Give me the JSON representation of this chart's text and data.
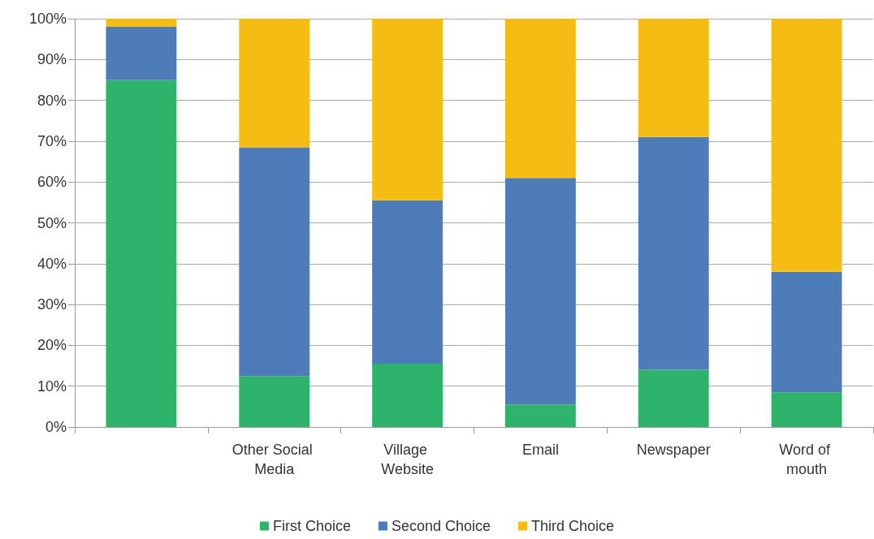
{
  "chart_data": {
    "type": "bar",
    "stacked": true,
    "categories": [
      null,
      "Other Social Media",
      "Village Website",
      "Email",
      "Newspaper",
      "Word of mouth"
    ],
    "series": [
      {
        "name": "First Choice",
        "color": "#2db46a",
        "values": [
          85,
          12.5,
          15.5,
          5.5,
          14,
          8.5
        ]
      },
      {
        "name": "Second Choice",
        "color": "#4e7cb9",
        "values": [
          13,
          56,
          40,
          55.5,
          57,
          29.5
        ]
      },
      {
        "name": "Third Choice",
        "color": "#f5bc14",
        "values": [
          2,
          31.5,
          44.5,
          39,
          29,
          62
        ]
      }
    ],
    "ylim": [
      0,
      100
    ],
    "yticks": [
      {
        "value": 0,
        "label": "0%"
      },
      {
        "value": 10,
        "label": "10%"
      },
      {
        "value": 20,
        "label": "20%"
      },
      {
        "value": 30,
        "label": "30%"
      },
      {
        "value": 40,
        "label": "40%"
      },
      {
        "value": 50,
        "label": "50%"
      },
      {
        "value": 60,
        "label": "60%"
      },
      {
        "value": 70,
        "label": "70%"
      },
      {
        "value": 80,
        "label": "80%"
      },
      {
        "value": 90,
        "label": "90%"
      },
      {
        "value": 100,
        "label": "100%"
      }
    ],
    "grid": "y",
    "legend": "bottom"
  }
}
